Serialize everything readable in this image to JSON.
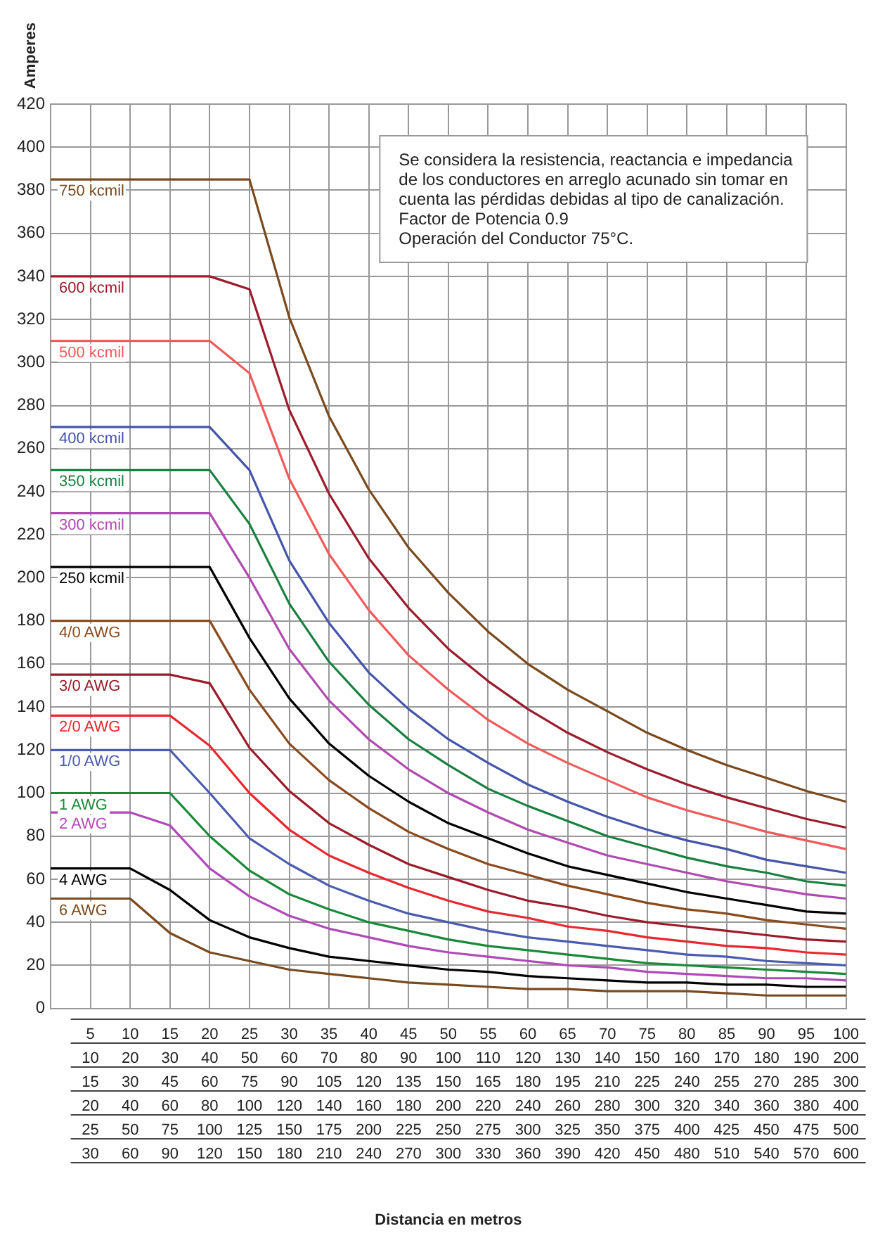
{
  "chart_data": {
    "type": "line",
    "xlabel": "Distancia en metros",
    "ylabel": "Amperes",
    "annotations": [
      "Se considera la resistencia, reactancia e impedancia\nde los conductores en arreglo acunado sin tomar en\ncuenta las pérdidas debidas al tipo de canalización.\nFactor de Potencia 0.9\nOperación del Conductor 75°C."
    ],
    "categories": [
      null,
      "5\n10\n15\n20\n25\n30",
      "10\n20\n30\n40\n50\n60",
      "15\n30\n45\n60\n75\n90",
      "20\n40\n60\n80\n100\n120",
      "25\n50\n75\n100\n125\n150",
      "30\n60\n90\n120\n150\n180",
      "35\n70\n105\n140\n175\n210",
      "40\n80\n120\n160\n200\n240",
      "45\n90\n135\n180\n225\n270",
      "50\n100\n150\n200\n250\n300",
      "55\n110\n165\n220\n275\n330",
      "60\n120\n180\n240\n300\n360",
      "65\n130\n195\n260\n325\n390",
      "70\n140\n210\n280\n350\n420",
      "75\n150\n225\n300\n375\n450",
      "80\n160\n240\n320\n400\n480",
      "85\n170\n255\n340\n425\n510",
      "90\n180\n270\n360\n450\n540",
      "95\n190\n285\n380\n475\n570",
      "100\n200\n300\n400\n500\n600"
    ],
    "ylim": [
      0,
      420
    ],
    "yticks": [
      0,
      20,
      40,
      60,
      80,
      100,
      120,
      140,
      160,
      180,
      200,
      220,
      240,
      260,
      280,
      300,
      320,
      340,
      360,
      380,
      400,
      420
    ],
    "grid": true,
    "legend": false,
    "marker": "none",
    "line_style": "solid",
    "series": [
      {
        "name": "750 kcmil",
        "color": "#7a4a1e",
        "values": [
          385,
          385,
          385,
          385,
          385,
          385,
          321,
          275,
          241,
          214,
          193,
          175,
          160,
          148,
          138,
          128,
          120,
          113,
          107,
          101,
          96
        ]
      },
      {
        "name": "600 kcmil",
        "color": "#9b1c2c",
        "values": [
          340,
          340,
          340,
          340,
          340,
          334,
          278,
          239,
          209,
          186,
          167,
          152,
          139,
          128,
          119,
          111,
          104,
          98,
          93,
          88,
          84
        ]
      },
      {
        "name": "500 kcmil",
        "color": "#f05a5a",
        "values": [
          310,
          310,
          310,
          310,
          310,
          295,
          246,
          211,
          185,
          164,
          148,
          134,
          123,
          114,
          106,
          98,
          92,
          87,
          82,
          78,
          74
        ]
      },
      {
        "name": "400 kcmil",
        "color": "#4455aa",
        "values": [
          270,
          270,
          270,
          270,
          270,
          250,
          208,
          179,
          156,
          139,
          125,
          114,
          104,
          96,
          89,
          83,
          78,
          74,
          69,
          66,
          63
        ]
      },
      {
        "name": "350 kcmil",
        "color": "#1a8040",
        "values": [
          250,
          250,
          250,
          250,
          250,
          225,
          188,
          161,
          141,
          125,
          113,
          102,
          94,
          87,
          80,
          75,
          70,
          66,
          63,
          59,
          57
        ]
      },
      {
        "name": "300 kcmil",
        "color": "#b04ab0",
        "values": [
          230,
          230,
          230,
          230,
          230,
          200,
          167,
          143,
          125,
          111,
          100,
          91,
          83,
          77,
          71,
          67,
          63,
          59,
          56,
          53,
          51
        ]
      },
      {
        "name": "250 kcmil",
        "color": "#000000",
        "values": [
          205,
          205,
          205,
          205,
          205,
          172,
          144,
          123,
          108,
          96,
          86,
          79,
          72,
          66,
          62,
          58,
          54,
          51,
          48,
          45,
          44
        ]
      },
      {
        "name": "4/0 AWG",
        "color": "#8b4a1e",
        "values": [
          180,
          180,
          180,
          180,
          180,
          148,
          123,
          106,
          93,
          82,
          74,
          67,
          62,
          57,
          53,
          49,
          46,
          44,
          41,
          39,
          37
        ]
      },
      {
        "name": "3/0 AWG",
        "color": "#9b1b2a",
        "values": [
          155,
          155,
          155,
          155,
          151,
          121,
          101,
          86,
          76,
          67,
          61,
          55,
          50,
          47,
          43,
          40,
          38,
          36,
          34,
          32,
          31
        ]
      },
      {
        "name": "2/0 AWG",
        "color": "#e8282e",
        "values": [
          136,
          136,
          136,
          136,
          122,
          100,
          83,
          71,
          63,
          56,
          50,
          45,
          42,
          38,
          36,
          33,
          31,
          29,
          28,
          26,
          25
        ]
      },
      {
        "name": "1/0 AWG",
        "color": "#4a5bb0",
        "values": [
          120,
          120,
          120,
          120,
          100,
          79,
          67,
          57,
          50,
          44,
          40,
          36,
          33,
          31,
          29,
          27,
          25,
          24,
          22,
          21,
          20
        ]
      },
      {
        "name": "1 AWG",
        "color": "#1a8a3a",
        "values": [
          100,
          100,
          100,
          100,
          80,
          64,
          53,
          46,
          40,
          36,
          32,
          29,
          27,
          25,
          23,
          21,
          20,
          19,
          18,
          17,
          16
        ]
      },
      {
        "name": "2 AWG",
        "color": "#b04ab8",
        "values": [
          91,
          91,
          91,
          85,
          65,
          52,
          43,
          37,
          33,
          29,
          26,
          24,
          22,
          20,
          19,
          17,
          16,
          15,
          14,
          14,
          13
        ]
      },
      {
        "name": "4 AWG",
        "color": "#000000",
        "values": [
          65,
          65,
          65,
          55,
          41,
          33,
          28,
          24,
          22,
          20,
          18,
          17,
          15,
          14,
          13,
          12,
          12,
          11,
          11,
          10,
          10
        ]
      },
      {
        "name": "6 AWG",
        "color": "#7a4a1e",
        "values": [
          51,
          51,
          51,
          35,
          26,
          22,
          18,
          16,
          14,
          12,
          11,
          10,
          9,
          9,
          8,
          8,
          8,
          7,
          6,
          6,
          6
        ]
      }
    ]
  }
}
